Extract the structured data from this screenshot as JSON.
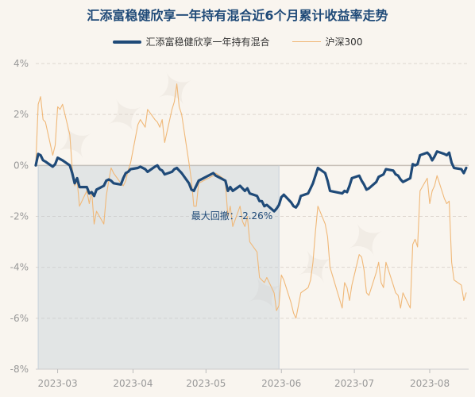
{
  "chart_data": {
    "type": "line",
    "title": "汇添富稳健欣享一年持有混合近6个月累计收益率走势",
    "legend_position": "top-center",
    "y_unit": "%",
    "ylim": [
      -8,
      4
    ],
    "y_ticks": [
      "4%",
      "2%",
      "0%",
      "-2%",
      "-4%",
      "-6%",
      "-8%"
    ],
    "x_tick_labels": [
      "2023-03",
      "2023-04",
      "2023-05",
      "2023-06",
      "2023-07",
      "2023-08"
    ],
    "grid": true,
    "annotation": "最大回撤：-2.26%",
    "series": [
      {
        "name": "汇添富稳健欣享一年持有混合",
        "color": "#1f4a78",
        "points": [
          [
            "2023-02-20",
            0.0
          ],
          [
            "2023-02-21",
            0.45
          ],
          [
            "2023-02-22",
            0.4
          ],
          [
            "2023-02-23",
            0.2
          ],
          [
            "2023-02-24",
            0.15
          ],
          [
            "2023-02-27",
            -0.05
          ],
          [
            "2023-02-28",
            0.05
          ],
          [
            "2023-03-01",
            0.3
          ],
          [
            "2023-03-02",
            0.25
          ],
          [
            "2023-03-03",
            0.2
          ],
          [
            "2023-03-06",
            0.0
          ],
          [
            "2023-03-07",
            -0.3
          ],
          [
            "2023-03-08",
            -0.7
          ],
          [
            "2023-03-09",
            -0.5
          ],
          [
            "2023-03-10",
            -0.85
          ],
          [
            "2023-03-13",
            -0.85
          ],
          [
            "2023-03-14",
            -1.1
          ],
          [
            "2023-03-15",
            -1.05
          ],
          [
            "2023-03-16",
            -1.2
          ],
          [
            "2023-03-17",
            -0.95
          ],
          [
            "2023-03-20",
            -0.8
          ],
          [
            "2023-03-21",
            -0.6
          ],
          [
            "2023-03-22",
            -0.55
          ],
          [
            "2023-03-23",
            -0.6
          ],
          [
            "2023-03-24",
            -0.7
          ],
          [
            "2023-03-27",
            -0.75
          ],
          [
            "2023-03-28",
            -0.5
          ],
          [
            "2023-03-29",
            -0.3
          ],
          [
            "2023-03-30",
            -0.25
          ],
          [
            "2023-03-31",
            -0.15
          ],
          [
            "2023-04-03",
            -0.1
          ],
          [
            "2023-04-04",
            -0.05
          ],
          [
            "2023-04-06",
            -0.15
          ],
          [
            "2023-04-07",
            -0.25
          ],
          [
            "2023-04-10",
            -0.05
          ],
          [
            "2023-04-11",
            0.0
          ],
          [
            "2023-04-12",
            -0.15
          ],
          [
            "2023-04-13",
            -0.2
          ],
          [
            "2023-04-14",
            -0.35
          ],
          [
            "2023-04-17",
            -0.25
          ],
          [
            "2023-04-18",
            -0.15
          ],
          [
            "2023-04-19",
            -0.1
          ],
          [
            "2023-04-20",
            -0.2
          ],
          [
            "2023-04-21",
            -0.3
          ],
          [
            "2023-04-24",
            -0.7
          ],
          [
            "2023-04-25",
            -0.95
          ],
          [
            "2023-04-26",
            -1.0
          ],
          [
            "2023-04-27",
            -0.8
          ],
          [
            "2023-04-28",
            -0.6
          ],
          [
            "2023-05-04",
            -0.3
          ],
          [
            "2023-05-05",
            -0.4
          ],
          [
            "2023-05-08",
            -0.55
          ],
          [
            "2023-05-09",
            -0.6
          ],
          [
            "2023-05-10",
            -1.0
          ],
          [
            "2023-05-11",
            -0.85
          ],
          [
            "2023-05-12",
            -1.0
          ],
          [
            "2023-05-15",
            -0.8
          ],
          [
            "2023-05-16",
            -0.9
          ],
          [
            "2023-05-17",
            -1.0
          ],
          [
            "2023-05-18",
            -0.9
          ],
          [
            "2023-05-19",
            -1.1
          ],
          [
            "2023-05-22",
            -1.2
          ],
          [
            "2023-05-23",
            -1.4
          ],
          [
            "2023-05-24",
            -1.4
          ],
          [
            "2023-05-25",
            -1.6
          ],
          [
            "2023-05-26",
            -1.55
          ],
          [
            "2023-05-29",
            -1.8
          ],
          [
            "2023-05-30",
            -1.7
          ],
          [
            "2023-05-31",
            -1.55
          ],
          [
            "2023-06-01",
            -1.25
          ],
          [
            "2023-06-02",
            -1.15
          ],
          [
            "2023-06-05",
            -1.45
          ],
          [
            "2023-06-06",
            -1.6
          ],
          [
            "2023-06-07",
            -1.65
          ],
          [
            "2023-06-08",
            -1.5
          ],
          [
            "2023-06-09",
            -1.2
          ],
          [
            "2023-06-12",
            -1.1
          ],
          [
            "2023-06-13",
            -0.9
          ],
          [
            "2023-06-14",
            -0.7
          ],
          [
            "2023-06-15",
            -0.4
          ],
          [
            "2023-06-16",
            -0.1
          ],
          [
            "2023-06-19",
            -0.3
          ],
          [
            "2023-06-20",
            -0.6
          ],
          [
            "2023-06-21",
            -1.0
          ],
          [
            "2023-06-26",
            -1.1
          ],
          [
            "2023-06-27",
            -1.0
          ],
          [
            "2023-06-28",
            -1.05
          ],
          [
            "2023-06-29",
            -0.8
          ],
          [
            "2023-06-30",
            -0.5
          ],
          [
            "2023-07-03",
            -0.4
          ],
          [
            "2023-07-04",
            -0.6
          ],
          [
            "2023-07-05",
            -0.75
          ],
          [
            "2023-07-06",
            -0.95
          ],
          [
            "2023-07-07",
            -0.9
          ],
          [
            "2023-07-10",
            -0.65
          ],
          [
            "2023-07-11",
            -0.45
          ],
          [
            "2023-07-12",
            -0.4
          ],
          [
            "2023-07-13",
            -0.35
          ],
          [
            "2023-07-14",
            -0.15
          ],
          [
            "2023-07-17",
            -0.2
          ],
          [
            "2023-07-18",
            -0.35
          ],
          [
            "2023-07-19",
            -0.4
          ],
          [
            "2023-07-20",
            -0.55
          ],
          [
            "2023-07-21",
            -0.65
          ],
          [
            "2023-07-24",
            -0.5
          ],
          [
            "2023-07-25",
            0.05
          ],
          [
            "2023-07-26",
            0.0
          ],
          [
            "2023-07-27",
            0.05
          ],
          [
            "2023-07-28",
            0.4
          ],
          [
            "2023-07-31",
            0.5
          ],
          [
            "2023-08-01",
            0.4
          ],
          [
            "2023-08-02",
            0.2
          ],
          [
            "2023-08-03",
            0.35
          ],
          [
            "2023-08-04",
            0.55
          ],
          [
            "2023-08-07",
            0.45
          ],
          [
            "2023-08-08",
            0.4
          ],
          [
            "2023-08-09",
            0.5
          ],
          [
            "2023-08-10",
            0.1
          ],
          [
            "2023-08-11",
            -0.1
          ],
          [
            "2023-08-14",
            -0.15
          ],
          [
            "2023-08-15",
            -0.3
          ],
          [
            "2023-08-16",
            -0.1
          ]
        ]
      },
      {
        "name": "沪深300",
        "color": "#f0b878",
        "points": [
          [
            "2023-02-20",
            0.0
          ],
          [
            "2023-02-21",
            2.4
          ],
          [
            "2023-02-22",
            2.7
          ],
          [
            "2023-02-23",
            1.8
          ],
          [
            "2023-02-24",
            1.7
          ],
          [
            "2023-02-27",
            0.4
          ],
          [
            "2023-02-28",
            0.8
          ],
          [
            "2023-03-01",
            2.3
          ],
          [
            "2023-03-02",
            2.2
          ],
          [
            "2023-03-03",
            2.4
          ],
          [
            "2023-03-06",
            1.2
          ],
          [
            "2023-03-07",
            -0.1
          ],
          [
            "2023-03-08",
            -0.8
          ],
          [
            "2023-03-09",
            -0.6
          ],
          [
            "2023-03-10",
            -1.6
          ],
          [
            "2023-03-13",
            -1.0
          ],
          [
            "2023-03-14",
            -1.5
          ],
          [
            "2023-03-15",
            -1.0
          ],
          [
            "2023-03-16",
            -2.3
          ],
          [
            "2023-03-17",
            -1.8
          ],
          [
            "2023-03-20",
            -2.3
          ],
          [
            "2023-03-21",
            -1.2
          ],
          [
            "2023-03-22",
            -0.6
          ],
          [
            "2023-03-23",
            -0.1
          ],
          [
            "2023-03-24",
            -0.3
          ],
          [
            "2023-03-27",
            -0.7
          ],
          [
            "2023-03-28",
            -0.8
          ],
          [
            "2023-03-29",
            -0.6
          ],
          [
            "2023-03-30",
            -0.2
          ],
          [
            "2023-03-31",
            0.1
          ],
          [
            "2023-04-03",
            1.6
          ],
          [
            "2023-04-04",
            1.8
          ],
          [
            "2023-04-06",
            1.5
          ],
          [
            "2023-04-07",
            2.2
          ],
          [
            "2023-04-10",
            1.8
          ],
          [
            "2023-04-11",
            1.7
          ],
          [
            "2023-04-12",
            1.5
          ],
          [
            "2023-04-13",
            1.8
          ],
          [
            "2023-04-14",
            0.9
          ],
          [
            "2023-04-17",
            2.2
          ],
          [
            "2023-04-18",
            2.5
          ],
          [
            "2023-04-19",
            3.2
          ],
          [
            "2023-04-20",
            2.3
          ],
          [
            "2023-04-21",
            2.0
          ],
          [
            "2023-04-24",
            0.1
          ],
          [
            "2023-04-25",
            -0.6
          ],
          [
            "2023-04-26",
            -1.6
          ],
          [
            "2023-04-27",
            -1.6
          ],
          [
            "2023-04-28",
            -0.7
          ],
          [
            "2023-05-04",
            -0.4
          ],
          [
            "2023-05-05",
            -0.3
          ],
          [
            "2023-05-08",
            -0.5
          ],
          [
            "2023-05-09",
            -0.7
          ],
          [
            "2023-05-10",
            -2.0
          ],
          [
            "2023-05-11",
            -1.6
          ],
          [
            "2023-05-12",
            -2.4
          ],
          [
            "2023-05-15",
            -1.6
          ],
          [
            "2023-05-16",
            -2.2
          ],
          [
            "2023-05-17",
            -2.4
          ],
          [
            "2023-05-18",
            -2.0
          ],
          [
            "2023-05-19",
            -3.0
          ],
          [
            "2023-05-22",
            -3.4
          ],
          [
            "2023-05-23",
            -4.4
          ],
          [
            "2023-05-24",
            -4.5
          ],
          [
            "2023-05-25",
            -4.6
          ],
          [
            "2023-05-26",
            -4.4
          ],
          [
            "2023-05-29",
            -5.0
          ],
          [
            "2023-05-30",
            -5.7
          ],
          [
            "2023-05-31",
            -5.5
          ],
          [
            "2023-06-01",
            -4.3
          ],
          [
            "2023-06-02",
            -4.5
          ],
          [
            "2023-06-05",
            -5.4
          ],
          [
            "2023-06-06",
            -5.8
          ],
          [
            "2023-06-07",
            -6.0
          ],
          [
            "2023-06-08",
            -5.5
          ],
          [
            "2023-06-09",
            -5.0
          ],
          [
            "2023-06-12",
            -4.8
          ],
          [
            "2023-06-13",
            -4.5
          ],
          [
            "2023-06-14",
            -3.8
          ],
          [
            "2023-06-15",
            -2.6
          ],
          [
            "2023-06-16",
            -1.6
          ],
          [
            "2023-06-19",
            -2.3
          ],
          [
            "2023-06-20",
            -2.8
          ],
          [
            "2023-06-21",
            -4.0
          ],
          [
            "2023-06-26",
            -5.6
          ],
          [
            "2023-06-27",
            -4.6
          ],
          [
            "2023-06-28",
            -4.8
          ],
          [
            "2023-06-29",
            -5.3
          ],
          [
            "2023-06-30",
            -4.7
          ],
          [
            "2023-07-03",
            -3.5
          ],
          [
            "2023-07-04",
            -3.6
          ],
          [
            "2023-07-05",
            -4.1
          ],
          [
            "2023-07-06",
            -5.0
          ],
          [
            "2023-07-07",
            -5.1
          ],
          [
            "2023-07-10",
            -4.2
          ],
          [
            "2023-07-11",
            -3.8
          ],
          [
            "2023-07-12",
            -4.6
          ],
          [
            "2023-07-13",
            -4.8
          ],
          [
            "2023-07-14",
            -3.8
          ],
          [
            "2023-07-17",
            -4.7
          ],
          [
            "2023-07-18",
            -5.0
          ],
          [
            "2023-07-19",
            -5.1
          ],
          [
            "2023-07-20",
            -5.6
          ],
          [
            "2023-07-21",
            -5.0
          ],
          [
            "2023-07-24",
            -5.6
          ],
          [
            "2023-07-25",
            -3.1
          ],
          [
            "2023-07-26",
            -2.9
          ],
          [
            "2023-07-27",
            -3.2
          ],
          [
            "2023-07-28",
            -1.0
          ],
          [
            "2023-07-31",
            -0.5
          ],
          [
            "2023-08-01",
            -1.5
          ],
          [
            "2023-08-02",
            -1.0
          ],
          [
            "2023-08-03",
            -0.8
          ],
          [
            "2023-08-04",
            -0.4
          ],
          [
            "2023-08-07",
            -1.3
          ],
          [
            "2023-08-08",
            -1.5
          ],
          [
            "2023-08-09",
            -1.4
          ],
          [
            "2023-08-10",
            -3.8
          ],
          [
            "2023-08-11",
            -4.5
          ],
          [
            "2023-08-14",
            -4.7
          ],
          [
            "2023-08-15",
            -5.3
          ],
          [
            "2023-08-16",
            -5.0
          ]
        ]
      }
    ],
    "drawdown": {
      "start": "2023-02-21",
      "end": "2023-05-31",
      "value_label": "-2.26%"
    }
  }
}
